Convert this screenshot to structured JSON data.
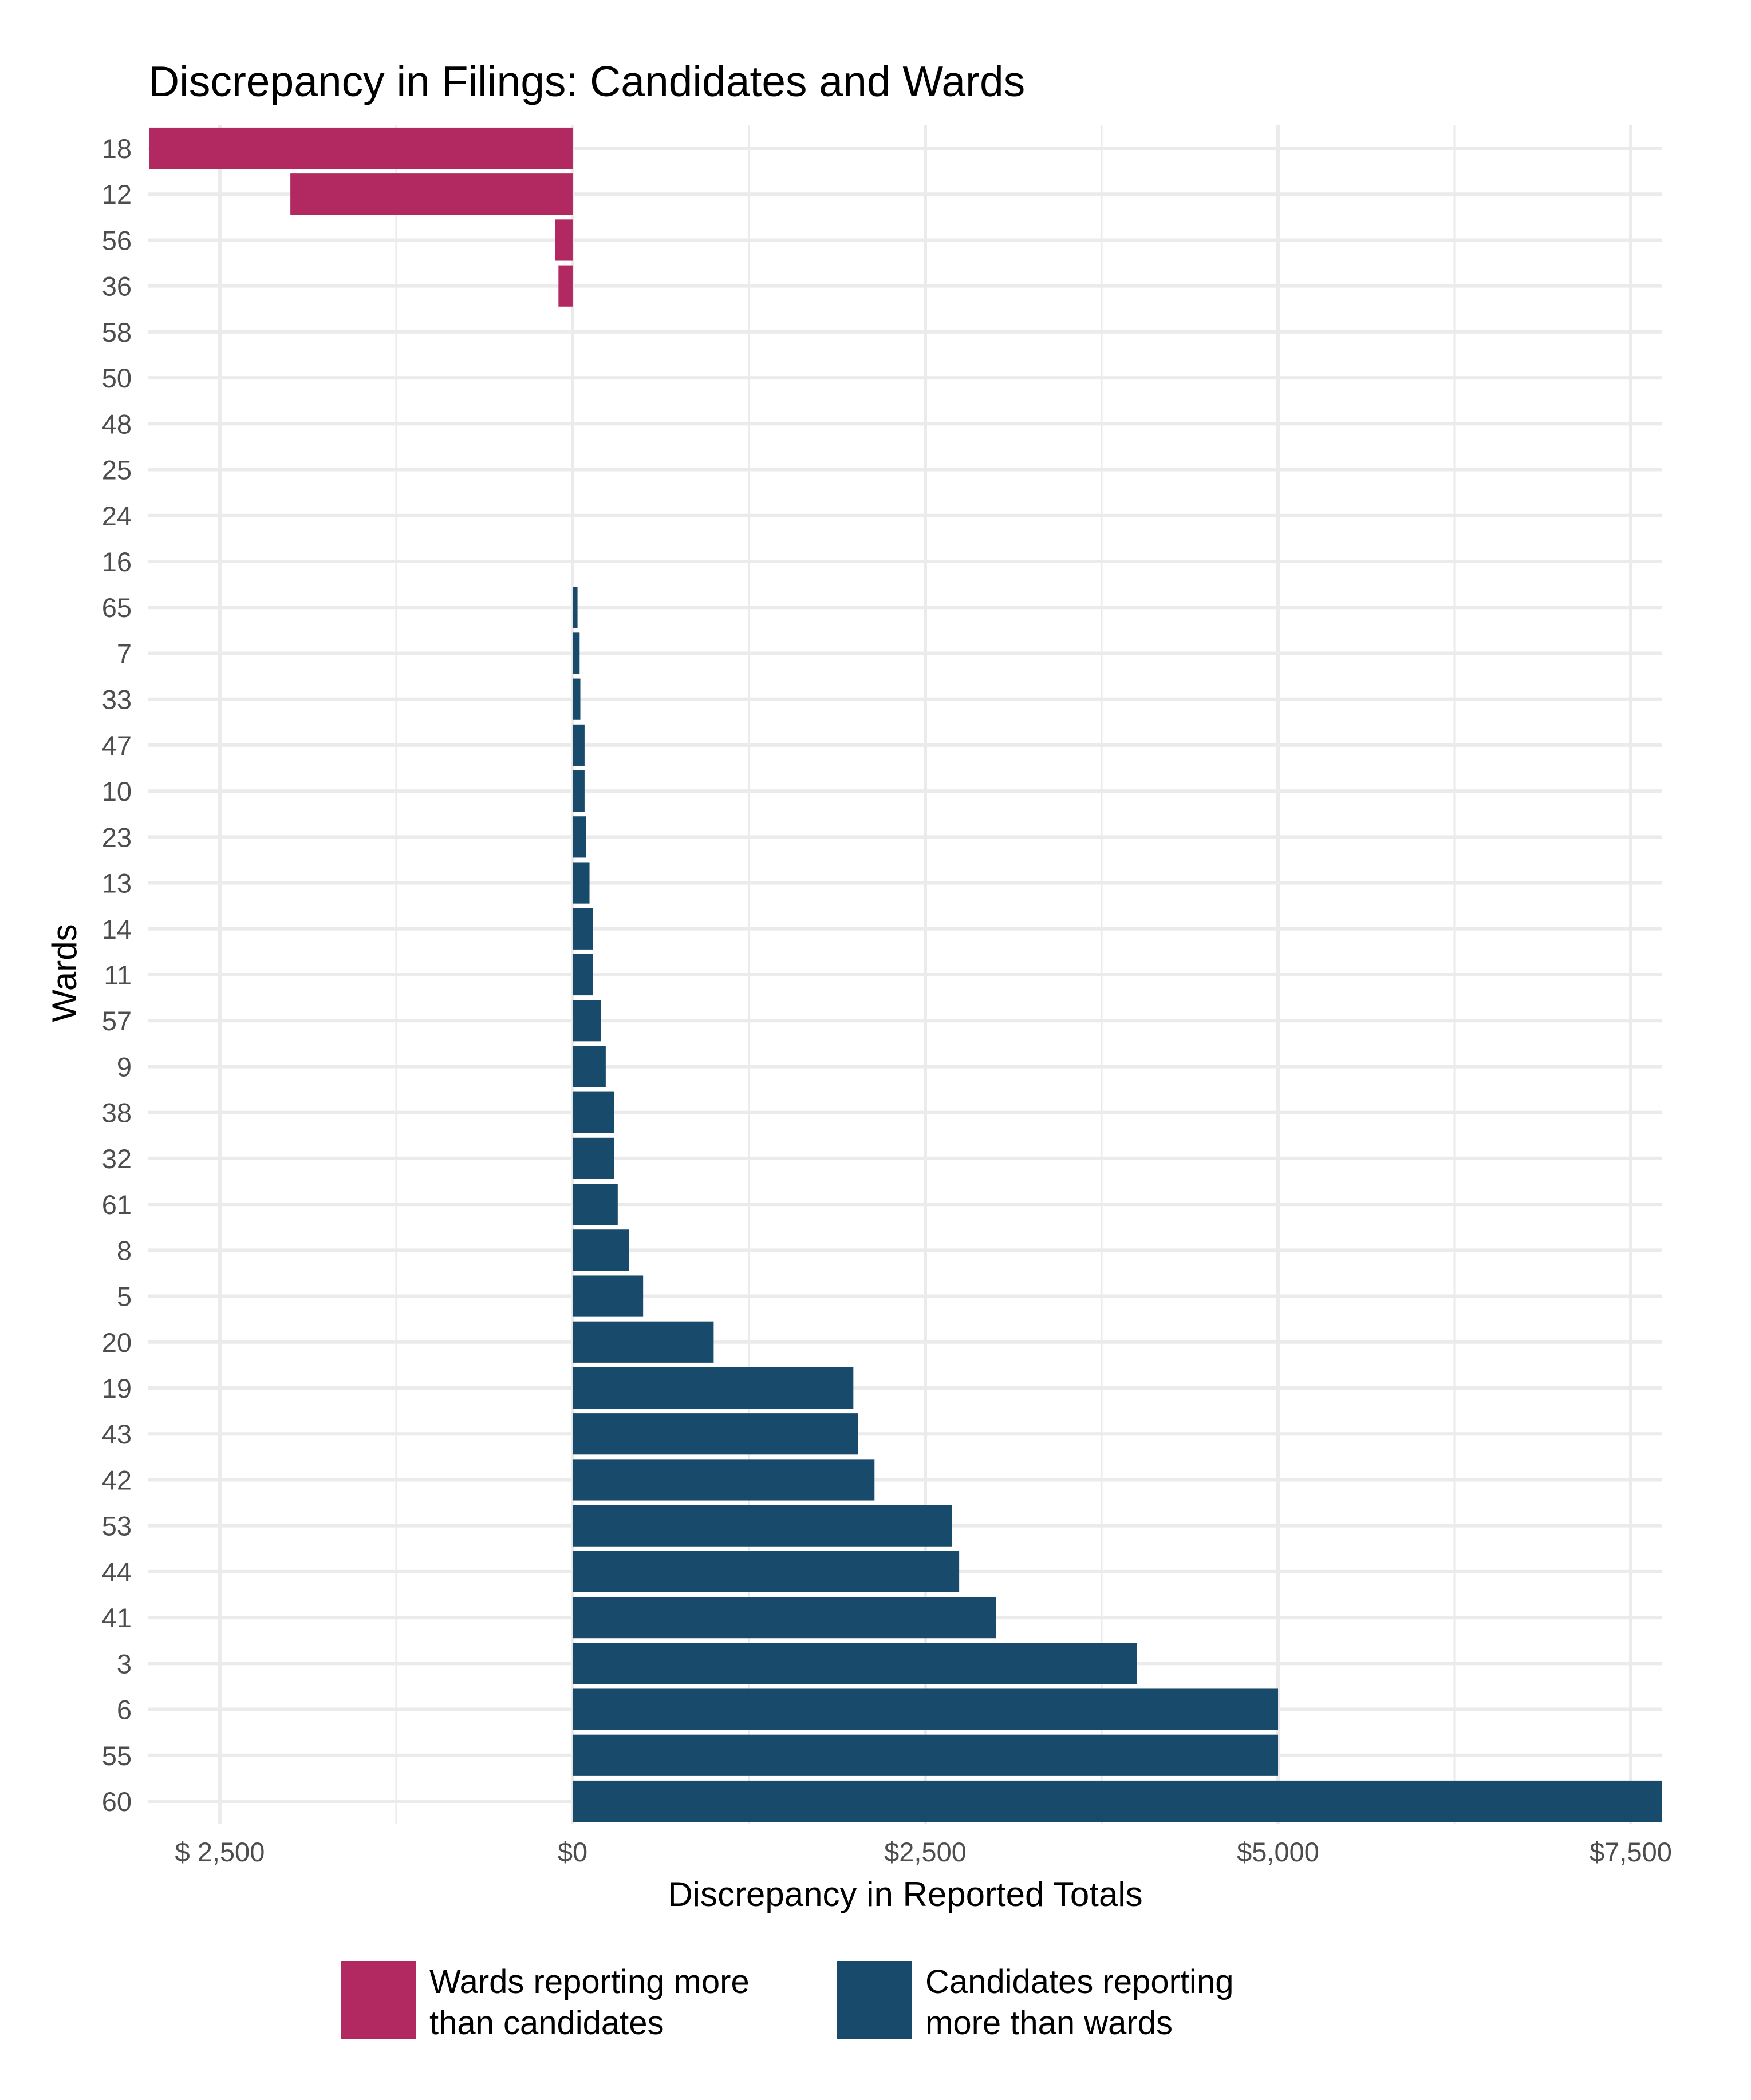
{
  "chart_data": {
    "type": "bar",
    "orientation": "horizontal",
    "title": "Discrepancy in Filings: Candidates and Wards",
    "xlabel": "Discrepancy in Reported Totals",
    "ylabel": "Wards",
    "xlim": [
      -3007,
      7723
    ],
    "x_ticks": [
      -2500,
      0,
      2500,
      5000,
      7500
    ],
    "x_tick_labels": [
      "$ 2,500",
      "$0",
      "$2,500",
      "$5,000",
      "$7,500"
    ],
    "grid": true,
    "legend_placement": "bottom",
    "colors": {
      "wards_more": "#B22961",
      "candidates_more": "#184B6B",
      "grid": "#EBEBEB"
    },
    "legend": [
      {
        "key": "wards_more",
        "lines": [
          "Wards reporting more",
          "than candidates"
        ]
      },
      {
        "key": "candidates_more",
        "lines": [
          "Candidates reporting",
          "more than wards"
        ]
      }
    ],
    "categories": [
      "18",
      "12",
      "56",
      "36",
      "58",
      "50",
      "48",
      "25",
      "24",
      "16",
      "65",
      "7",
      "33",
      "47",
      "10",
      "23",
      "13",
      "14",
      "11",
      "57",
      "9",
      "38",
      "32",
      "61",
      "8",
      "5",
      "20",
      "19",
      "43",
      "42",
      "53",
      "44",
      "41",
      "3",
      "6",
      "55",
      "60"
    ],
    "values": [
      -3000,
      -2000,
      -125,
      -100,
      0,
      0,
      0,
      0,
      0,
      0,
      35,
      50,
      55,
      85,
      85,
      95,
      120,
      145,
      145,
      200,
      235,
      295,
      295,
      320,
      400,
      500,
      1000,
      1990,
      2025,
      2140,
      2690,
      2740,
      3000,
      4000,
      5000,
      5000,
      7720
    ]
  }
}
